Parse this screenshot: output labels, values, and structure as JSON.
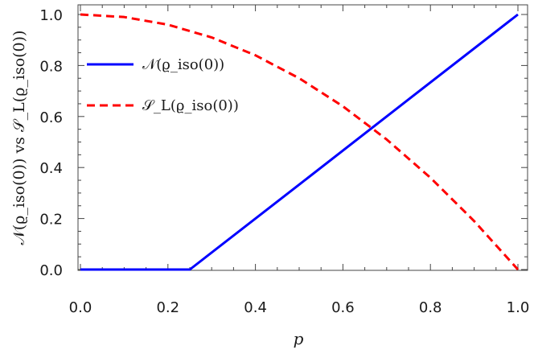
{
  "chart_data": {
    "type": "line",
    "xlabel": "p",
    "ylabel": "𝒩(ϱ_iso(0)) vs 𝒮_L(ϱ_iso(0))",
    "xlim": [
      0.0,
      1.0
    ],
    "ylim": [
      0.0,
      1.0
    ],
    "xticks": [
      "0.0",
      "0.2",
      "0.4",
      "0.6",
      "0.8",
      "1.0"
    ],
    "yticks": [
      "0.0",
      "0.2",
      "0.4",
      "0.6",
      "0.8",
      "1.0"
    ],
    "grid": false,
    "legend_position": "top-left",
    "series": [
      {
        "name": "𝒩(ϱ_iso(0))",
        "color": "#0000ff",
        "style": "solid",
        "x": [
          0.0,
          0.25,
          0.5,
          0.75,
          1.0
        ],
        "y": [
          0.0,
          0.0,
          0.333,
          0.667,
          1.0
        ]
      },
      {
        "name": "𝒮_L(ϱ_iso(0))",
        "color": "#ff0000",
        "style": "dashed",
        "x": [
          0.0,
          0.1,
          0.2,
          0.3,
          0.4,
          0.5,
          0.6,
          0.7,
          0.8,
          0.9,
          1.0
        ],
        "y": [
          1.0,
          0.99,
          0.96,
          0.91,
          0.84,
          0.75,
          0.64,
          0.51,
          0.36,
          0.19,
          0.0
        ]
      }
    ]
  }
}
